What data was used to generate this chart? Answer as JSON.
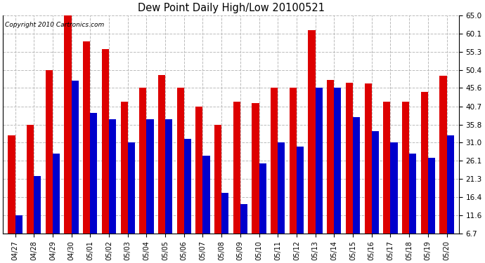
{
  "title": "Dew Point Daily High/Low 20100521",
  "copyright": "Copyright 2010 Cartronics.com",
  "dates": [
    "04/27",
    "04/28",
    "04/29",
    "04/30",
    "05/01",
    "05/02",
    "05/03",
    "05/04",
    "05/05",
    "05/06",
    "05/07",
    "05/08",
    "05/09",
    "05/10",
    "05/11",
    "05/12",
    "05/13",
    "05/14",
    "05/15",
    "05/16",
    "05/17",
    "05/18",
    "05/19",
    "05/20"
  ],
  "highs": [
    33.0,
    35.8,
    50.4,
    65.0,
    58.0,
    56.0,
    42.0,
    45.6,
    49.0,
    45.6,
    40.7,
    35.8,
    42.0,
    41.5,
    45.6,
    45.6,
    61.0,
    47.8,
    47.0,
    46.8,
    42.0,
    42.0,
    44.5,
    48.9
  ],
  "lows": [
    11.6,
    22.0,
    28.0,
    47.5,
    39.0,
    37.2,
    31.0,
    37.2,
    37.2,
    32.0,
    27.5,
    17.5,
    14.5,
    25.5,
    31.0,
    30.0,
    45.6,
    45.6,
    37.8,
    34.0,
    31.0,
    28.0,
    26.9,
    33.0
  ],
  "high_color": "#dd0000",
  "low_color": "#0000cc",
  "background_color": "#ffffff",
  "grid_color": "#bbbbbb",
  "yticks": [
    6.7,
    11.6,
    16.4,
    21.3,
    26.1,
    31.0,
    35.8,
    40.7,
    45.6,
    50.4,
    55.3,
    60.1,
    65.0
  ],
  "ymin": 6.7,
  "ymax": 65.0,
  "bar_width": 0.38,
  "figwidth": 6.9,
  "figheight": 3.75,
  "dpi": 100
}
